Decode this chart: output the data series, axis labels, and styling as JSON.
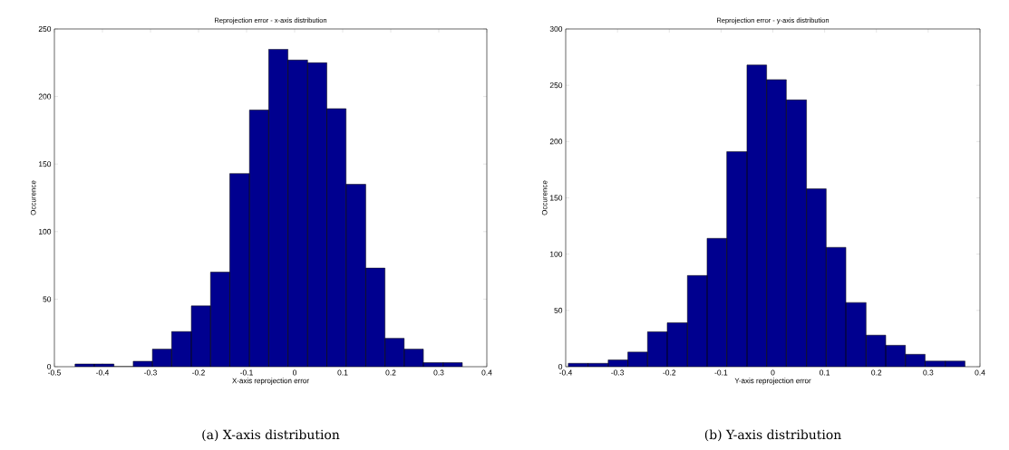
{
  "chart_data": [
    {
      "type": "histogram",
      "title": "Reprojection error - x-axis distribution",
      "xlabel": "X-axis reprojection error",
      "ylabel": "Occurence",
      "color": "#00008f",
      "bins": [
        -0.457,
        -0.417,
        -0.376,
        -0.336,
        -0.296,
        -0.256,
        -0.215,
        -0.175,
        -0.135,
        -0.094,
        -0.054,
        -0.014,
        0.027,
        0.067,
        0.107,
        0.148,
        0.188,
        0.228,
        0.268,
        0.309,
        0.349
      ],
      "values": [
        2,
        2,
        0,
        4,
        13,
        26,
        45,
        70,
        143,
        190,
        235,
        227,
        225,
        191,
        135,
        73,
        21,
        13,
        3,
        3
      ],
      "xlim": [
        -0.5,
        0.4
      ],
      "ylim": [
        0,
        250
      ],
      "xticks": [
        -0.5,
        -0.4,
        -0.3,
        -0.2,
        -0.1,
        0,
        0.1,
        0.2,
        0.3,
        0.4
      ],
      "yticks": [
        0,
        50,
        100,
        150,
        200,
        250
      ],
      "annotations": [
        "(a) X-axis distribution"
      ]
    },
    {
      "type": "histogram",
      "title": "Reprojection error - y-axis distribution",
      "xlabel": "Y-axis reprojection error",
      "ylabel": "Occurence",
      "color": "#00008f",
      "bins": [
        -0.395,
        -0.357,
        -0.318,
        -0.28,
        -0.242,
        -0.204,
        -0.165,
        -0.127,
        -0.089,
        -0.05,
        -0.012,
        0.026,
        0.065,
        0.103,
        0.141,
        0.18,
        0.218,
        0.256,
        0.294,
        0.333,
        0.371
      ],
      "values": [
        3,
        3,
        6,
        13,
        31,
        39,
        81,
        114,
        191,
        268,
        255,
        237,
        158,
        106,
        57,
        28,
        19,
        11,
        5,
        5
      ],
      "xlim": [
        -0.4,
        0.4
      ],
      "ylim": [
        0,
        300
      ],
      "xticks": [
        -0.4,
        -0.3,
        -0.2,
        -0.1,
        0,
        0.1,
        0.2,
        0.3,
        0.4
      ],
      "yticks": [
        0,
        50,
        100,
        150,
        200,
        250,
        300
      ],
      "annotations": [
        "(b) Y-axis distribution"
      ]
    }
  ]
}
